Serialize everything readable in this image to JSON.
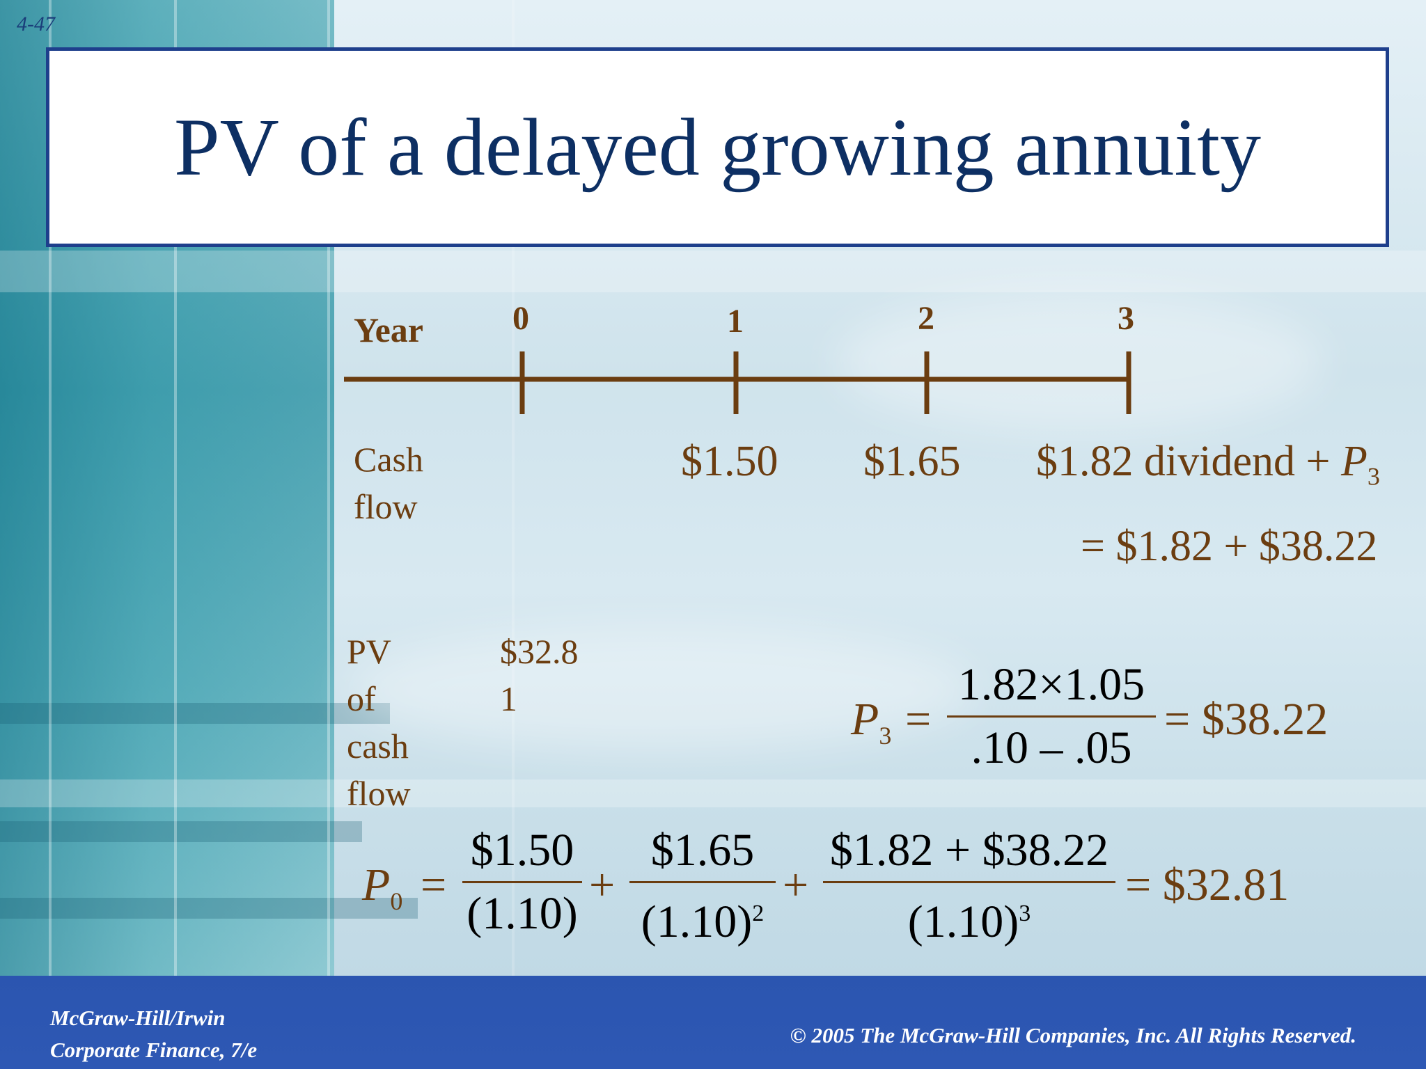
{
  "slide_number": "4-47",
  "title": "PV of a delayed growing annuity",
  "timeline": {
    "year_label": "Year",
    "years": [
      "0",
      "1",
      "2",
      "3"
    ],
    "cash_flow_label_line1": "Cash",
    "cash_flow_label_line2": "flow",
    "cash_flows": [
      "$1.50",
      "$1.65"
    ],
    "year3_cash_flow_text": "$1.82 dividend + ",
    "year3_p": "P",
    "year3_p_sub": "3",
    "year3_sum": "= $1.82 + $38.22"
  },
  "pv_block": {
    "label_lines": [
      "PV",
      "of",
      "cash",
      "flow"
    ],
    "value_line1": "$32.8",
    "value_line2": "1"
  },
  "formula_p3": {
    "lhs": "P",
    "lhs_sub": "3",
    "eq1": "=",
    "numerator": "1.82×1.05",
    "denominator": ".10 – .05",
    "result": "= $38.22"
  },
  "formula_p0": {
    "lhs": "P",
    "lhs_sub": "0",
    "eq1": "=",
    "term1_num": "$1.50",
    "term1_den": "(1.10)",
    "plus1": "+",
    "term2_num": "$1.65",
    "term2_den": "(1.10)",
    "term2_exp": "2",
    "plus2": "+",
    "term3_num": "$1.82 + $38.22",
    "term3_den": "(1.10)",
    "term3_exp": "3",
    "result": "= $32.81"
  },
  "footer": {
    "publisher": "McGraw-Hill/Irwin",
    "book": "Corporate Finance, 7/e",
    "copyright": "© 2005  The McGraw-Hill Companies, Inc.  All Rights Reserved."
  },
  "colors": {
    "title_text": "#0d2f63",
    "title_border": "#1e3f8c",
    "body_text": "#6b3d10",
    "footer_bg": "#2b55b0"
  }
}
